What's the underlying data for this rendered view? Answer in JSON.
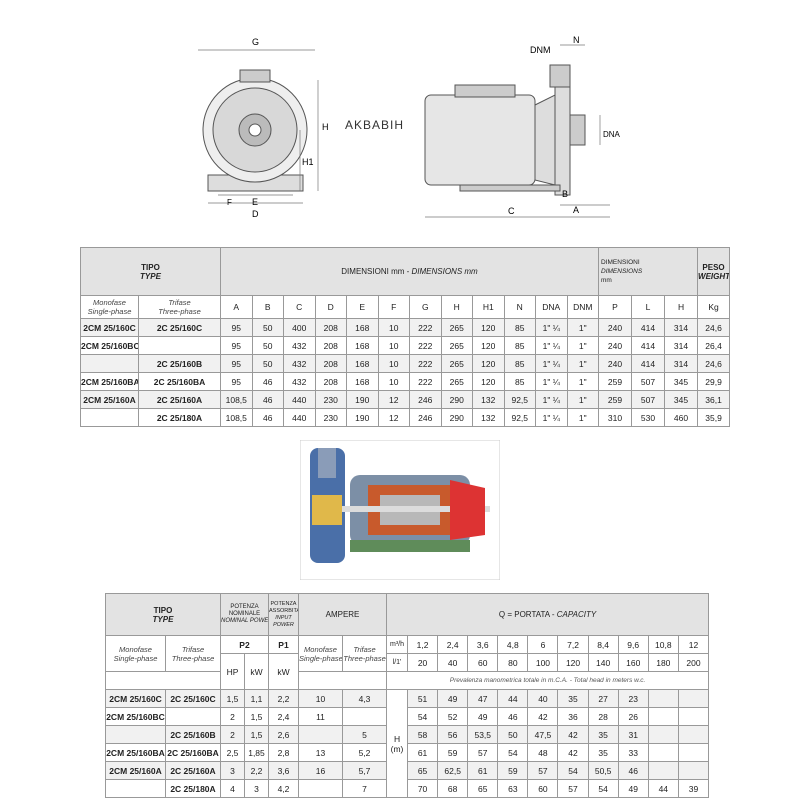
{
  "logo": "AKBABIH",
  "drawing_labels": {
    "front": [
      "G",
      "H",
      "H1",
      "F",
      "E",
      "D"
    ],
    "side": [
      "DNM",
      "N",
      "DNA",
      "B",
      "A",
      "C"
    ]
  },
  "table1": {
    "tipo": "TIPO",
    "type": "TYPE",
    "dim_title": "DIMENSIONI mm - ",
    "dim_title_en": "DIMENSIONS mm",
    "pack_title": [
      "DIMENSIONI",
      "DIMENSIONS",
      "mm"
    ],
    "peso": "PESO",
    "weight": "WEIGHT",
    "mono": "Monofase",
    "mono_en": "Single-phase",
    "tri": "Trifase",
    "tri_en": "Three-phase",
    "cols": [
      "A",
      "B",
      "C",
      "D",
      "E",
      "F",
      "G",
      "H",
      "H1",
      "N",
      "DNA",
      "DNM",
      "P",
      "L",
      "H",
      "Kg"
    ],
    "rows": [
      [
        "2CM 25/160C",
        "2C 25/160C",
        "95",
        "50",
        "400",
        "208",
        "168",
        "10",
        "222",
        "265",
        "120",
        "85",
        "1\" ¼",
        "1\"",
        "240",
        "414",
        "314",
        "24,6"
      ],
      [
        "2CM 25/160BC",
        "",
        "95",
        "50",
        "432",
        "208",
        "168",
        "10",
        "222",
        "265",
        "120",
        "85",
        "1\" ¼",
        "1\"",
        "240",
        "414",
        "314",
        "26,4"
      ],
      [
        "",
        "2C 25/160B",
        "95",
        "50",
        "432",
        "208",
        "168",
        "10",
        "222",
        "265",
        "120",
        "85",
        "1\" ¼",
        "1\"",
        "240",
        "414",
        "314",
        "24,6"
      ],
      [
        "2CM 25/160BA",
        "2C 25/160BA",
        "95",
        "46",
        "432",
        "208",
        "168",
        "10",
        "222",
        "265",
        "120",
        "85",
        "1\" ¼",
        "1\"",
        "259",
        "507",
        "345",
        "29,9"
      ],
      [
        "2CM 25/160A",
        "2C 25/160A",
        "108,5",
        "46",
        "440",
        "230",
        "190",
        "12",
        "246",
        "290",
        "132",
        "92,5",
        "1\" ¼",
        "1\"",
        "259",
        "507",
        "345",
        "36,1"
      ],
      [
        "",
        "2C 25/180A",
        "108,5",
        "46",
        "440",
        "230",
        "190",
        "12",
        "246",
        "290",
        "132",
        "92,5",
        "1\" ¼",
        "1\"",
        "310",
        "530",
        "460",
        "35,9"
      ]
    ]
  },
  "table2": {
    "tipo": "TIPO",
    "type": "TYPE",
    "pot_nom": [
      "POTENZA",
      "NOMINALE",
      "NOMINAL POWER"
    ],
    "pot_ass": [
      "POTENZA",
      "ASSORBITA",
      "INPUT",
      "POWER"
    ],
    "ampere": "AMPERE",
    "capacity": "Q = PORTATA - ",
    "capacity_en": "CAPACITY",
    "mono": "Monofase",
    "mono_en": "Single-phase",
    "tri": "Trifase",
    "tri_en": "Three-phase",
    "p2": "P2",
    "p1": "P1",
    "hp": "HP",
    "kw": "kW",
    "kw1": "kW",
    "unit_m3h": "m³/h",
    "unit_lmin": "l/1'",
    "m3h": [
      "1,2",
      "2,4",
      "3,6",
      "4,8",
      "6",
      "7,2",
      "8,4",
      "9,6",
      "10,8",
      "12"
    ],
    "lmin": [
      "20",
      "40",
      "60",
      "80",
      "100",
      "120",
      "140",
      "160",
      "180",
      "200"
    ],
    "head_note": "Prevalenza manometrica totale in m.C.A. - Total head in meters w.c.",
    "h_label": "H",
    "h_unit": "(m)",
    "rows": [
      {
        "mono": "2CM 25/160C",
        "tri": "2C 25/160C",
        "hp": "1,5",
        "kw": "1,1",
        "p1": "2,2",
        "am": "10",
        "at": "4,3",
        "h": [
          "51",
          "49",
          "47",
          "44",
          "40",
          "35",
          "27",
          "23",
          "",
          ""
        ]
      },
      {
        "mono": "2CM 25/160BC",
        "tri": "",
        "hp": "2",
        "kw": "1,5",
        "p1": "2,4",
        "am": "11",
        "at": "",
        "h": [
          "54",
          "52",
          "49",
          "46",
          "42",
          "36",
          "28",
          "26",
          "",
          ""
        ]
      },
      {
        "mono": "",
        "tri": "2C 25/160B",
        "hp": "2",
        "kw": "1,5",
        "p1": "2,6",
        "am": "",
        "at": "5",
        "h": [
          "58",
          "56",
          "53,5",
          "50",
          "47,5",
          "42",
          "35",
          "31",
          "",
          ""
        ]
      },
      {
        "mono": "2CM 25/160BA",
        "tri": "2C 25/160BA",
        "hp": "2,5",
        "kw": "1,85",
        "p1": "2,8",
        "am": "13",
        "at": "5,2",
        "h": [
          "61",
          "59",
          "57",
          "54",
          "48",
          "42",
          "35",
          "33",
          "",
          ""
        ]
      },
      {
        "mono": "2CM 25/160A",
        "tri": "2C 25/160A",
        "hp": "3",
        "kw": "2,2",
        "p1": "3,6",
        "am": "16",
        "at": "5,7",
        "h": [
          "65",
          "62,5",
          "61",
          "59",
          "57",
          "54",
          "50,5",
          "46",
          "",
          ""
        ]
      },
      {
        "mono": "",
        "tri": "2C 25/180A",
        "hp": "4",
        "kw": "3",
        "p1": "4,2",
        "am": "",
        "at": "7",
        "h": [
          "70",
          "68",
          "65",
          "63",
          "60",
          "57",
          "54",
          "49",
          "44",
          "39"
        ]
      }
    ]
  }
}
